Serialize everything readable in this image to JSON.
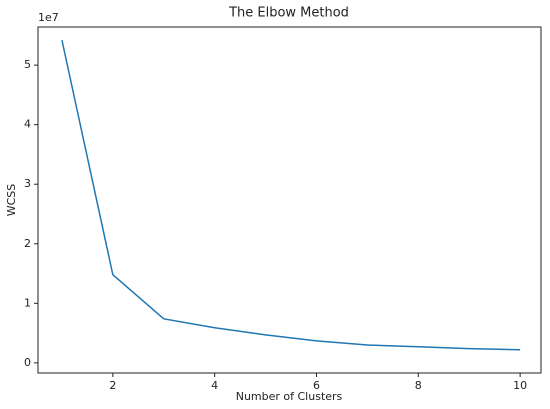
{
  "chart_data": {
    "type": "line",
    "title": "The Elbow Method",
    "x_label": "Number of Clusters",
    "y_label": "WCSS",
    "y_offset_label": "1e7",
    "x": [
      1,
      2,
      3,
      4,
      5,
      6,
      7,
      8,
      9,
      10
    ],
    "series": [
      {
        "name": "WCSS",
        "color": "#1f77b4",
        "values": [
          5.42,
          1.48,
          0.74,
          0.59,
          0.47,
          0.37,
          0.3,
          0.27,
          0.24,
          0.22
        ]
      }
    ],
    "xlim": [
      0.53,
      10.41
    ],
    "ylim": [
      -0.17,
      5.64
    ],
    "xticks": [
      2,
      4,
      6,
      8,
      10
    ],
    "yticks": [
      0,
      1,
      2,
      3,
      4,
      5
    ]
  }
}
